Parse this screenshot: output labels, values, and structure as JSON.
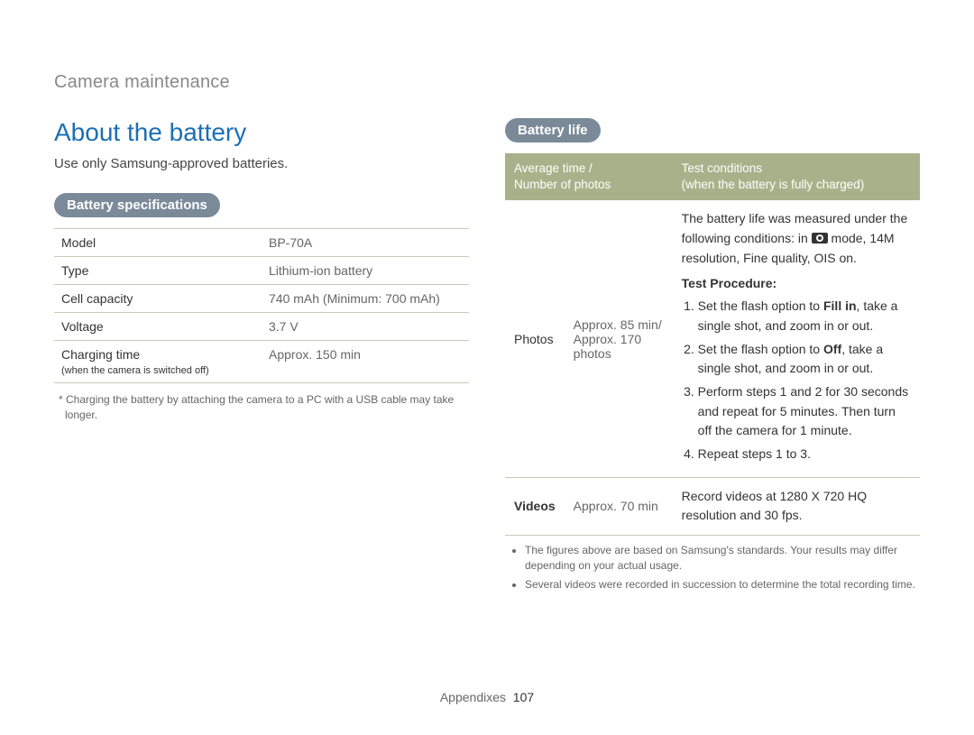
{
  "breadcrumb": "Camera maintenance",
  "title": "About the battery",
  "intro": "Use only Samsung-approved batteries.",
  "spec": {
    "pill": "Battery specifications",
    "rows": [
      {
        "label": "Model",
        "sub": "",
        "value": "BP-70A"
      },
      {
        "label": "Type",
        "sub": "",
        "value": "Lithium-ion battery"
      },
      {
        "label": "Cell capacity",
        "sub": "",
        "value": "740 mAh (Minimum: 700 mAh)"
      },
      {
        "label": "Voltage",
        "sub": "",
        "value": "3.7 V"
      },
      {
        "label": "Charging time",
        "sub": "when the camera is switched off",
        "value": "Approx. 150 min"
      }
    ],
    "footnote": "* Charging the battery by attaching the camera to a PC with a USB cable may take longer."
  },
  "life": {
    "pill": "Battery life",
    "header": {
      "col1_line1": "Average time /",
      "col1_line2": "Number of photos",
      "col2_line1": "Test conditions",
      "col2_line2": "(when the battery is fully charged)"
    },
    "photos": {
      "label": "Photos",
      "time": "Approx. 85 min/ Approx. 170 photos",
      "cond_intro_pre": "The battery life was measured under the following conditions: in ",
      "cond_intro_post": " mode, 14M resolution, Fine quality, OIS on.",
      "tp_label": "Test Procedure:",
      "steps": {
        "s1_pre": "Set the flash option to ",
        "s1_bold": "Fill in",
        "s1_post": ", take a single shot, and zoom in or out.",
        "s2_pre": "Set the flash option to ",
        "s2_bold": "Off",
        "s2_post": ", take a single shot, and zoom in or out.",
        "s3": "Perform steps 1 and 2 for 30 seconds and repeat for 5 minutes. Then turn off the camera for 1 minute.",
        "s4": "Repeat steps 1 to 3."
      }
    },
    "videos": {
      "label": "Videos",
      "time": "Approx. 70 min",
      "cond": "Record videos at 1280 X 720 HQ resolution and 30 fps."
    },
    "notes": [
      "The figures above are based on Samsung's standards. Your results may differ depending on your actual usage.",
      "Several videos were recorded in succession to determine the total recording time."
    ]
  },
  "footer": {
    "label": "Appendixes",
    "page": "107"
  },
  "colors": {
    "title": "#1b6fb5",
    "pill_bg": "#7a8a99",
    "table_header_bg": "#a9b18a",
    "border": "#c9c9b8",
    "muted": "#666666"
  }
}
